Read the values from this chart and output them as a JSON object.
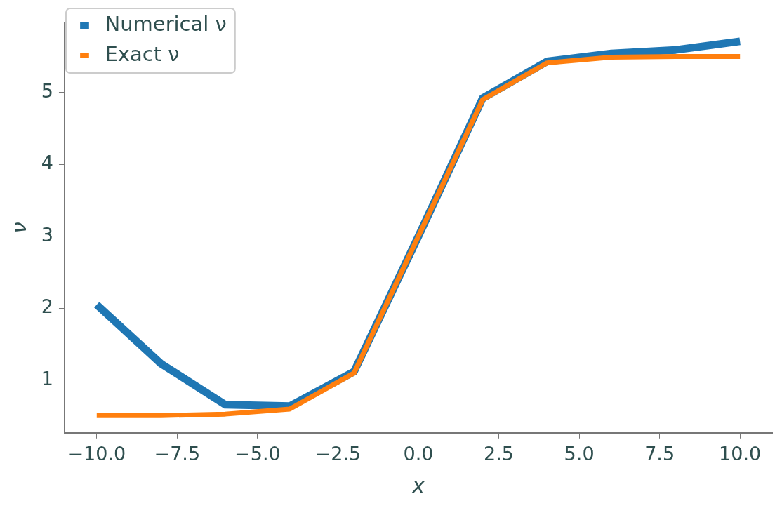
{
  "chart_data": {
    "type": "line",
    "xlabel": "x",
    "ylabel": "ν",
    "x": [
      -10,
      -8,
      -6,
      -4,
      -2,
      0,
      2,
      4,
      6,
      8,
      10
    ],
    "series": [
      {
        "name": "Numerical ν",
        "color": "#1f77b4",
        "values": [
          2.05,
          1.23,
          0.66,
          0.64,
          1.12,
          3.0,
          4.92,
          5.43,
          5.54,
          5.59,
          5.71
        ]
      },
      {
        "name": "Exact ν",
        "color": "#ff7f0e",
        "values": [
          0.51,
          0.51,
          0.53,
          0.6,
          1.1,
          3.0,
          4.9,
          5.41,
          5.49,
          5.5,
          5.5
        ]
      }
    ],
    "xlim": [
      -11,
      11
    ],
    "ylim": [
      0.27,
      5.97
    ],
    "xticks": [
      {
        "value": -10,
        "label": "−10.0"
      },
      {
        "value": -7.5,
        "label": "−7.5"
      },
      {
        "value": -5,
        "label": "−5.0"
      },
      {
        "value": -2.5,
        "label": "−2.5"
      },
      {
        "value": 0,
        "label": "0.0"
      },
      {
        "value": 2.5,
        "label": "2.5"
      },
      {
        "value": 5,
        "label": "5.0"
      },
      {
        "value": 7.5,
        "label": "7.5"
      },
      {
        "value": 10,
        "label": "10.0"
      }
    ],
    "yticks": [
      1,
      2,
      3,
      4,
      5
    ],
    "grid": false,
    "legend": "top left",
    "marker": "none",
    "line_style": "solid"
  }
}
